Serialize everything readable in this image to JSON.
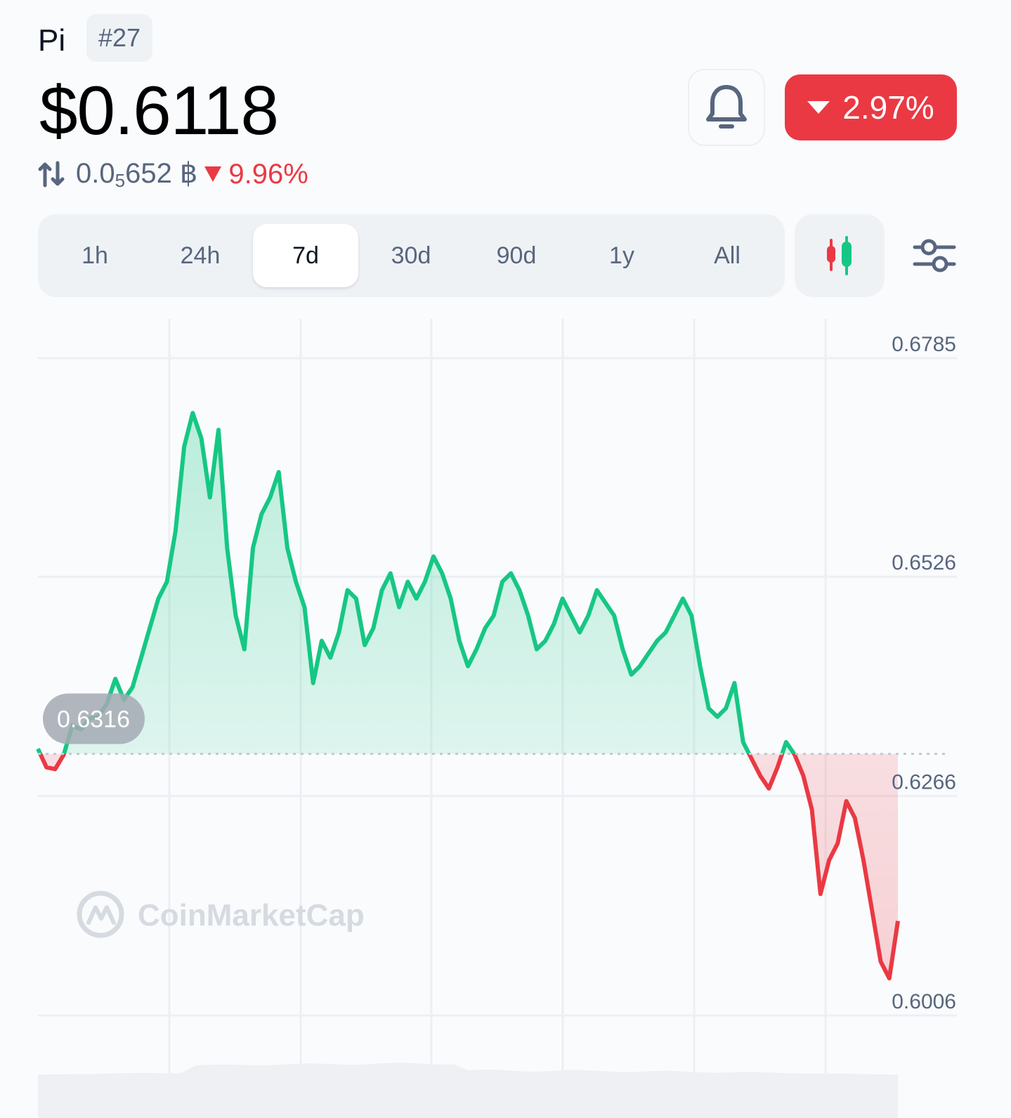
{
  "header": {
    "coin_name": "Pi",
    "rank": "#27",
    "price": "$0.6118",
    "btc_price_prefix": "0.0",
    "btc_price_subscript": "5",
    "btc_price_suffix": "652 ฿",
    "btc_change": "9.96%",
    "change_24h": "2.97%",
    "down_color": "#ea3943",
    "up_color": "#16c784"
  },
  "tabs": [
    "1h",
    "24h",
    "7d",
    "30d",
    "90d",
    "1y",
    "All"
  ],
  "active_tab": "7d",
  "icons": {
    "swap": "swap-arrows-icon",
    "bell": "bell-icon",
    "candle": "candlestick-icon",
    "settings": "sliders-icon",
    "logo": "coinmarketcap-logo"
  },
  "watermark": "CoinMarketCap",
  "chart_data": {
    "type": "area",
    "y_ticks": [
      "0.6785",
      "0.6526",
      "0.6266",
      "0.6006"
    ],
    "ylim": [
      0.6006,
      0.6785
    ],
    "baseline": 0.6316,
    "baseline_label": "0.6316",
    "grid": true,
    "x": [
      0,
      0.01,
      0.02,
      0.03,
      0.04,
      0.05,
      0.06,
      0.07,
      0.08,
      0.09,
      0.1,
      0.11,
      0.12,
      0.13,
      0.14,
      0.15,
      0.16,
      0.17,
      0.18,
      0.19,
      0.2,
      0.21,
      0.22,
      0.23,
      0.24,
      0.25,
      0.26,
      0.27,
      0.28,
      0.29,
      0.3,
      0.31,
      0.32,
      0.33,
      0.34,
      0.35,
      0.36,
      0.37,
      0.38,
      0.39,
      0.4,
      0.41,
      0.42,
      0.43,
      0.44,
      0.45,
      0.46,
      0.47,
      0.48,
      0.49,
      0.5,
      0.51,
      0.52,
      0.53,
      0.54,
      0.55,
      0.56,
      0.57,
      0.58,
      0.59,
      0.6,
      0.61,
      0.62,
      0.63,
      0.64,
      0.65,
      0.66,
      0.67,
      0.68,
      0.69,
      0.7,
      0.71,
      0.72,
      0.73,
      0.74,
      0.75,
      0.76,
      0.77,
      0.78,
      0.79,
      0.8,
      0.81,
      0.82,
      0.83,
      0.84,
      0.85,
      0.86,
      0.87,
      0.88,
      0.89,
      0.9,
      0.91,
      0.92,
      0.93,
      0.94,
      0.95,
      0.96,
      0.97,
      0.98,
      0.99,
      1.0
    ],
    "series": [
      {
        "values": [
          0.6322,
          0.63,
          0.6298,
          0.6315,
          0.635,
          0.6345,
          0.6358,
          0.636,
          0.6375,
          0.6405,
          0.638,
          0.6395,
          0.643,
          0.6465,
          0.65,
          0.652,
          0.658,
          0.668,
          0.672,
          0.669,
          0.662,
          0.67,
          0.656,
          0.648,
          0.644,
          0.656,
          0.66,
          0.662,
          0.665,
          0.656,
          0.652,
          0.649,
          0.64,
          0.645,
          0.643,
          0.646,
          0.651,
          0.65,
          0.6445,
          0.6465,
          0.651,
          0.653,
          0.649,
          0.652,
          0.65,
          0.652,
          0.655,
          0.653,
          0.65,
          0.645,
          0.642,
          0.644,
          0.6465,
          0.648,
          0.652,
          0.653,
          0.651,
          0.648,
          0.644,
          0.645,
          0.647,
          0.65,
          0.648,
          0.646,
          0.648,
          0.651,
          0.6495,
          0.648,
          0.644,
          0.641,
          0.642,
          0.6435,
          0.645,
          0.646,
          0.648,
          0.65,
          0.648,
          0.642,
          0.637,
          0.636,
          0.637,
          0.64,
          0.633,
          0.631,
          0.629,
          0.6275,
          0.63,
          0.633,
          0.6315,
          0.629,
          0.625,
          0.615,
          0.619,
          0.621,
          0.626,
          0.624,
          0.619,
          0.613,
          0.607,
          0.605,
          0.6118
        ]
      }
    ]
  }
}
